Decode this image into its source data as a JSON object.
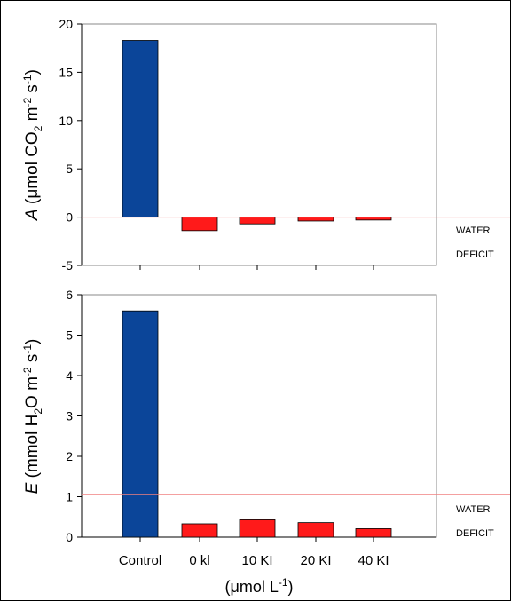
{
  "chart_data": [
    {
      "type": "bar",
      "categories": [
        "Control",
        "0 kl",
        "10 KI",
        "20 KI",
        "40 KI"
      ],
      "values": [
        18.3,
        -1.4,
        -0.7,
        -0.4,
        -0.3
      ],
      "bar_colors": [
        "#0b4599",
        "#ff1a1a",
        "#ff1a1a",
        "#ff1a1a",
        "#ff1a1a"
      ],
      "ylim": [
        -5,
        20
      ],
      "yticks": [
        "-5",
        "0",
        "5",
        "10",
        "15",
        "20"
      ],
      "ylabel_italic": "A",
      "ylabel_rest": " (μmol CO",
      "ylabel_sub": "2",
      "ylabel_mid": " m",
      "ylabel_sup1": "-2",
      "ylabel_s": " s",
      "ylabel_sup2": "-1",
      "ylabel_close": ")",
      "reference_line": 0,
      "reference_color": "#f08080",
      "annotation_line1": "WATER",
      "annotation_line2": "DEFICIT",
      "grid": false
    },
    {
      "type": "bar",
      "categories": [
        "Control",
        "0 kl",
        "10 KI",
        "20 KI",
        "40 KI"
      ],
      "values": [
        5.6,
        0.33,
        0.43,
        0.36,
        0.21
      ],
      "bar_colors": [
        "#0b4599",
        "#ff1a1a",
        "#ff1a1a",
        "#ff1a1a",
        "#ff1a1a"
      ],
      "ylim": [
        0,
        6
      ],
      "yticks": [
        "0",
        "1",
        "2",
        "3",
        "4",
        "5",
        "6"
      ],
      "ylabel_italic": "E",
      "ylabel_rest": " (mmol H",
      "ylabel_sub": "2",
      "ylabel_mid": "O m",
      "ylabel_sup1": "-2",
      "ylabel_s": " s",
      "ylabel_sup2": "-1",
      "ylabel_close": ")",
      "reference_line": 1.05,
      "reference_color": "#f08080",
      "annotation_line1": "WATER",
      "annotation_line2": "DEFICIT",
      "xlabel": "(μmol L",
      "xlabel_sup": "-1",
      "xlabel_close": ")",
      "grid": false
    }
  ]
}
